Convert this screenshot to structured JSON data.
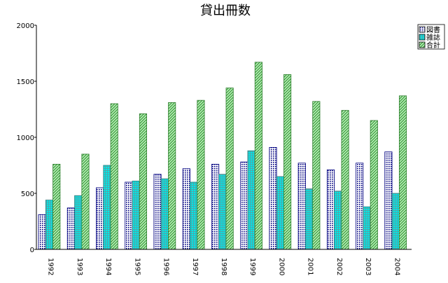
{
  "chart_data": {
    "type": "bar",
    "title": "貸出冊数",
    "xlabel": "",
    "ylabel": "",
    "categories": [
      "1992",
      "1993",
      "1994",
      "1995",
      "1996",
      "1997",
      "1998",
      "1999",
      "2000",
      "2001",
      "2002",
      "2003",
      "2004"
    ],
    "series": [
      {
        "name": "図書",
        "values": [
          310,
          370,
          550,
          600,
          670,
          720,
          760,
          780,
          910,
          770,
          710,
          770,
          870
        ],
        "color": "#000080",
        "pattern": "dots"
      },
      {
        "name": "雑誌",
        "values": [
          440,
          480,
          750,
          610,
          630,
          600,
          670,
          880,
          650,
          540,
          520,
          380,
          500
        ],
        "color": "#00e8e8",
        "pattern": "grid"
      },
      {
        "name": "合計",
        "values": [
          760,
          850,
          1300,
          1210,
          1310,
          1330,
          1440,
          1670,
          1560,
          1320,
          1240,
          1150,
          1370
        ],
        "color": "#66cc66",
        "pattern": "diagonal"
      }
    ],
    "ylim": [
      0,
      2000
    ],
    "yticks": [
      0,
      500,
      1000,
      1500,
      2000
    ],
    "grid": false,
    "legend_position": "top-right"
  }
}
